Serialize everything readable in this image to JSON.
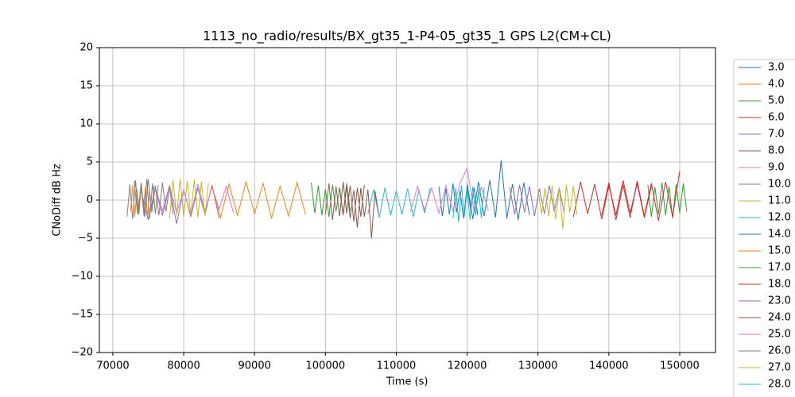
{
  "chart_data": {
    "type": "line",
    "title": "1113_no_radio/results/BX_gt35_1-P4-05_gt35_1 GPS L2(CM+CL)",
    "x_label": "Time (s)",
    "y_label": "CNoDiff dB Hz",
    "xlim": [
      68100,
      155050
    ],
    "ylim": [
      -20,
      20
    ],
    "xticks": [
      70000,
      80000,
      90000,
      100000,
      110000,
      120000,
      130000,
      140000,
      150000
    ],
    "yticks": [
      {
        "value": -20,
        "label": "−20"
      },
      {
        "value": -15,
        "label": "−15"
      },
      {
        "value": -10,
        "label": "−10"
      },
      {
        "value": -5,
        "label": "−5"
      },
      0,
      5,
      10,
      15,
      20
    ],
    "grid": true,
    "legend": "outside right",
    "series": [
      {
        "name": "3.0",
        "color": "#1f77b4",
        "x": [
          116000,
          116500,
          117000,
          117500,
          118000,
          118500,
          119000,
          119500,
          120000,
          120500,
          121000,
          121500
        ],
        "values": [
          1.8,
          -2.1,
          1.5,
          -1.9,
          2.2,
          -1.6,
          1.2,
          -2.4,
          1.9,
          -1.3,
          1.6,
          -2.0
        ]
      },
      {
        "name": "4.0",
        "color": "#ff7f0e",
        "x": [
          72500,
          72800,
          73100,
          73400,
          73700,
          74000,
          74300,
          74600,
          74900,
          75200,
          75500,
          75800
        ],
        "values": [
          -1.5,
          1.9,
          -2.2,
          1.4,
          -1.8,
          2.1,
          -1.2,
          1.7,
          -2.3,
          1.1,
          -1.6,
          1.8
        ]
      },
      {
        "name": "5.0",
        "color": "#2ca02c",
        "x": [
          98000,
          98500,
          99000,
          99500,
          100000,
          100500,
          101000,
          101500,
          102000,
          102500,
          103000,
          103500
        ],
        "values": [
          2.3,
          -1.7,
          1.9,
          -2.0,
          1.4,
          -2.2,
          2.0,
          -1.5,
          1.7,
          -1.9,
          2.2,
          -1.4
        ]
      },
      {
        "name": "6.0",
        "color": "#d62728",
        "x": [
          135000,
          136000,
          137000,
          138000,
          139000,
          140000,
          141000,
          142000,
          143000,
          144000,
          145000,
          146000
        ],
        "values": [
          -2.2,
          2.4,
          -1.8,
          2.1,
          -2.5,
          1.9,
          -2.0,
          2.6,
          -1.7,
          2.2,
          -2.3,
          1.8
        ]
      },
      {
        "name": "7.0",
        "color": "#9467bd",
        "x": [
          74000,
          75000,
          76000,
          77000,
          78000,
          79000,
          80000,
          81000,
          82000,
          83000,
          84000,
          85000
        ],
        "values": [
          1.2,
          -2.6,
          1.5,
          -2.0,
          1.8,
          -3.1,
          1.4,
          -2.2,
          1.6,
          -1.9,
          2.0,
          -2.4
        ]
      },
      {
        "name": "8.0",
        "color": "#8c564b",
        "x": [
          100000,
          100500,
          101000,
          101500,
          102000,
          102500,
          103000,
          103500,
          104000,
          104500,
          105000,
          105500
        ],
        "values": [
          -1.9,
          2.2,
          -2.6,
          1.8,
          -2.1,
          2.4,
          -1.7,
          1.9,
          -2.8,
          1.6,
          -2.2,
          2.0
        ]
      },
      {
        "name": "9.0",
        "color": "#e377c2",
        "x": [
          76000,
          77000,
          78000,
          79000,
          80000,
          81000,
          82000,
          83000,
          84000,
          85000,
          86000,
          87000
        ],
        "values": [
          1.6,
          -1.4,
          1.9,
          -1.7,
          1.3,
          -1.9,
          2.1,
          -1.5,
          1.7,
          -1.2,
          1.8,
          -1.6
        ]
      },
      {
        "name": "10.0",
        "color": "#7f7f7f",
        "x": [
          73000,
          73500,
          74000,
          74500,
          75000,
          75500,
          76000,
          76500,
          77000,
          77500,
          78000,
          78500
        ],
        "values": [
          2.5,
          -1.8,
          2.1,
          -2.2,
          2.7,
          -1.6,
          1.9,
          -2.0,
          2.3,
          -1.5,
          1.8,
          -1.9
        ]
      },
      {
        "name": "11.0",
        "color": "#bcbd22",
        "x": [
          78000,
          78500,
          79000,
          79500,
          80000,
          80500,
          81000,
          81500,
          82000,
          82500,
          83000,
          83500
        ],
        "values": [
          -2.4,
          2.6,
          -2.0,
          2.8,
          -2.2,
          2.5,
          -1.9,
          2.7,
          -2.3,
          2.4,
          -2.1,
          2.2
        ]
      },
      {
        "name": "12.0",
        "color": "#17becf",
        "x": [
          106000,
          106800,
          107600,
          108400,
          109200,
          110000,
          110800,
          111600,
          112400,
          113200,
          114000,
          114800
        ],
        "values": [
          -1.8,
          1.4,
          -2.3,
          1.6,
          -2.0,
          1.2,
          -1.9,
          1.5,
          -2.2,
          1.3,
          -1.7,
          1.6
        ]
      },
      {
        "name": "14.0",
        "color": "#1f77b4",
        "x": [
          120000,
          120800,
          121600,
          122400,
          123200,
          124000,
          124800,
          125600,
          126400,
          127200,
          128000,
          128800
        ],
        "values": [
          2.2,
          -2.5,
          2.4,
          -2.1,
          2.6,
          -2.3,
          5.2,
          -2.4,
          2.1,
          -2.6,
          2.3,
          -2.0
        ]
      },
      {
        "name": "15.0",
        "color": "#ff7f0e",
        "x": [
          84000,
          85200,
          86400,
          87600,
          88800,
          90000,
          91200,
          92400,
          93600,
          94800,
          96000,
          97200
        ],
        "values": [
          1.9,
          -2.3,
          2.1,
          -2.0,
          2.4,
          -1.8,
          2.2,
          -2.4,
          1.8,
          -2.1,
          2.3,
          -1.9
        ]
      },
      {
        "name": "17.0",
        "color": "#2ca02c",
        "x": [
          145500,
          146000,
          146500,
          147000,
          147500,
          148000,
          148500,
          149000,
          149500,
          150000,
          150500,
          151000
        ],
        "values": [
          2.0,
          -2.2,
          1.7,
          -1.9,
          2.3,
          -2.0,
          1.8,
          -2.4,
          2.1,
          -1.7,
          2.2,
          -1.5
        ]
      },
      {
        "name": "18.0",
        "color": "#d62728",
        "x": [
          139000,
          140000,
          141000,
          142000,
          143000,
          144000,
          145000,
          146000,
          147000,
          148000,
          149000,
          150000
        ],
        "values": [
          -2.0,
          2.3,
          -2.6,
          2.0,
          -2.3,
          2.5,
          -2.1,
          2.2,
          -2.7,
          2.4,
          -2.2,
          3.8
        ]
      },
      {
        "name": "23.0",
        "color": "#9467bd",
        "x": [
          126000,
          126700,
          127400,
          128100,
          128800,
          129500,
          130200,
          130900,
          131600,
          132300,
          133000,
          133700
        ],
        "values": [
          1.7,
          -1.9,
          2.0,
          -1.6,
          1.8,
          -2.1,
          1.5,
          -1.8,
          1.9,
          -1.5,
          1.6,
          -1.7
        ]
      },
      {
        "name": "24.0",
        "color": "#8c564b",
        "x": [
          102000,
          102500,
          103000,
          103500,
          104000,
          104500,
          105000,
          105500,
          106000,
          106500,
          107000,
          107500
        ],
        "values": [
          1.5,
          -2.0,
          1.8,
          -2.4,
          1.3,
          -3.6,
          1.6,
          -2.2,
          1.4,
          -5.0,
          1.2,
          -1.8
        ]
      },
      {
        "name": "25.0",
        "color": "#e377c2",
        "x": [
          112000,
          113000,
          114000,
          115000,
          116000,
          117000,
          118000,
          119000,
          120000,
          121000,
          122000,
          123000
        ],
        "values": [
          -1.5,
          1.8,
          -1.3,
          1.6,
          -1.7,
          1.9,
          -1.4,
          2.2,
          4.2,
          -1.6,
          1.7,
          -1.4
        ]
      },
      {
        "name": "26.0",
        "color": "#7f7f7f",
        "x": [
          72000,
          72400,
          72800,
          73200,
          73600,
          74000,
          74400,
          74800,
          75200,
          75600,
          76000,
          76400
        ],
        "values": [
          -2.2,
          2.0,
          -2.5,
          2.6,
          -1.9,
          2.3,
          -2.1,
          2.8,
          -2.4,
          2.2,
          -1.8,
          2.0
        ]
      },
      {
        "name": "27.0",
        "color": "#bcbd22",
        "x": [
          130000,
          130500,
          131000,
          131500,
          132000,
          132500,
          133000,
          133500,
          134000,
          134500,
          135000,
          135500
        ],
        "values": [
          1.4,
          -1.8,
          1.6,
          -2.1,
          1.9,
          -2.5,
          1.7,
          -3.8,
          2.0,
          -1.6,
          1.8,
          -1.9
        ]
      },
      {
        "name": "28.0",
        "color": "#17becf",
        "x": [
          118000,
          118400,
          118800,
          119200,
          119600,
          120000,
          120400,
          120800,
          121200,
          121600,
          122000,
          122400
        ],
        "values": [
          -2.4,
          1.6,
          -2.9,
          1.9,
          -2.2,
          1.5,
          -2.6,
          1.8,
          -2.0,
          1.4,
          -2.3,
          1.7
        ]
      }
    ]
  }
}
